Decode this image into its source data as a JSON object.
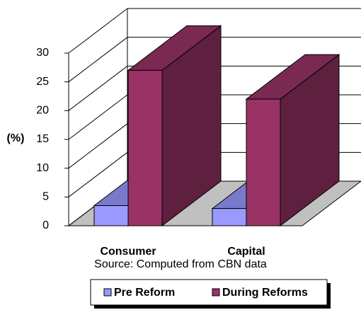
{
  "chart_data": {
    "type": "bar3d",
    "ylabel": "(%)",
    "annotation": "Source: Computed from CBN data",
    "categories": [
      "Consumer",
      "Capital"
    ],
    "series": [
      {
        "name": "Pre Reform",
        "color": "#9999ff",
        "values": [
          3.5,
          3
        ]
      },
      {
        "name": "During Reforms",
        "color": "#993366",
        "values": [
          27,
          22
        ]
      }
    ],
    "ylim": [
      0,
      30
    ],
    "yticks": [
      0,
      5,
      10,
      15,
      20,
      25,
      30
    ],
    "grid": true,
    "legend": "bottom"
  }
}
